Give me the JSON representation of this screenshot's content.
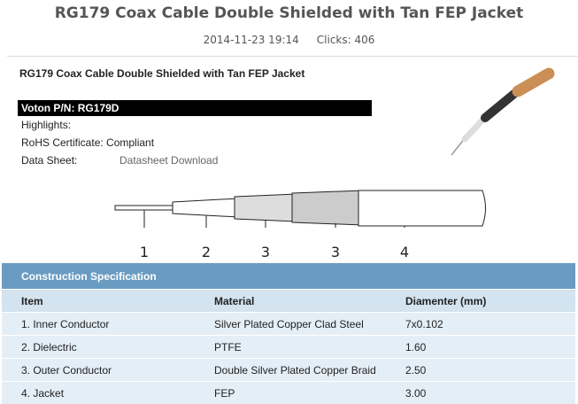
{
  "header": {
    "title": "RG179 Coax Cable Double Shielded with Tan FEP Jacket",
    "date": "2014-11-23 19:14",
    "clicks": "Clicks: 406"
  },
  "product": {
    "name": "RG179 Coax Cable Double Shielded with Tan FEP Jacket",
    "part_number": "Voton P/N: RG179D",
    "highlights": "Highlights:",
    "rohs": "RoHS Certificate: Compliant",
    "datasheet_label": "Data Sheet:",
    "datasheet_link": "Datasheet Download"
  },
  "diagram": {
    "labels": [
      "1",
      "2",
      "3",
      "3",
      "4"
    ]
  },
  "table": {
    "caption": "Construction Specification",
    "columns": [
      "Item",
      "Material",
      "Diamenter (mm)"
    ],
    "rows": [
      [
        "1. Inner Conductor",
        "Silver Plated Copper Clad Steel",
        "7x0.102"
      ],
      [
        "2. Dielectric",
        "PTFE",
        "1.60"
      ],
      [
        "3. Outer Conductor",
        "Double Silver Plated Copper Braid",
        "2.50"
      ],
      [
        "4. Jacket",
        "FEP",
        "3.00"
      ]
    ]
  }
}
